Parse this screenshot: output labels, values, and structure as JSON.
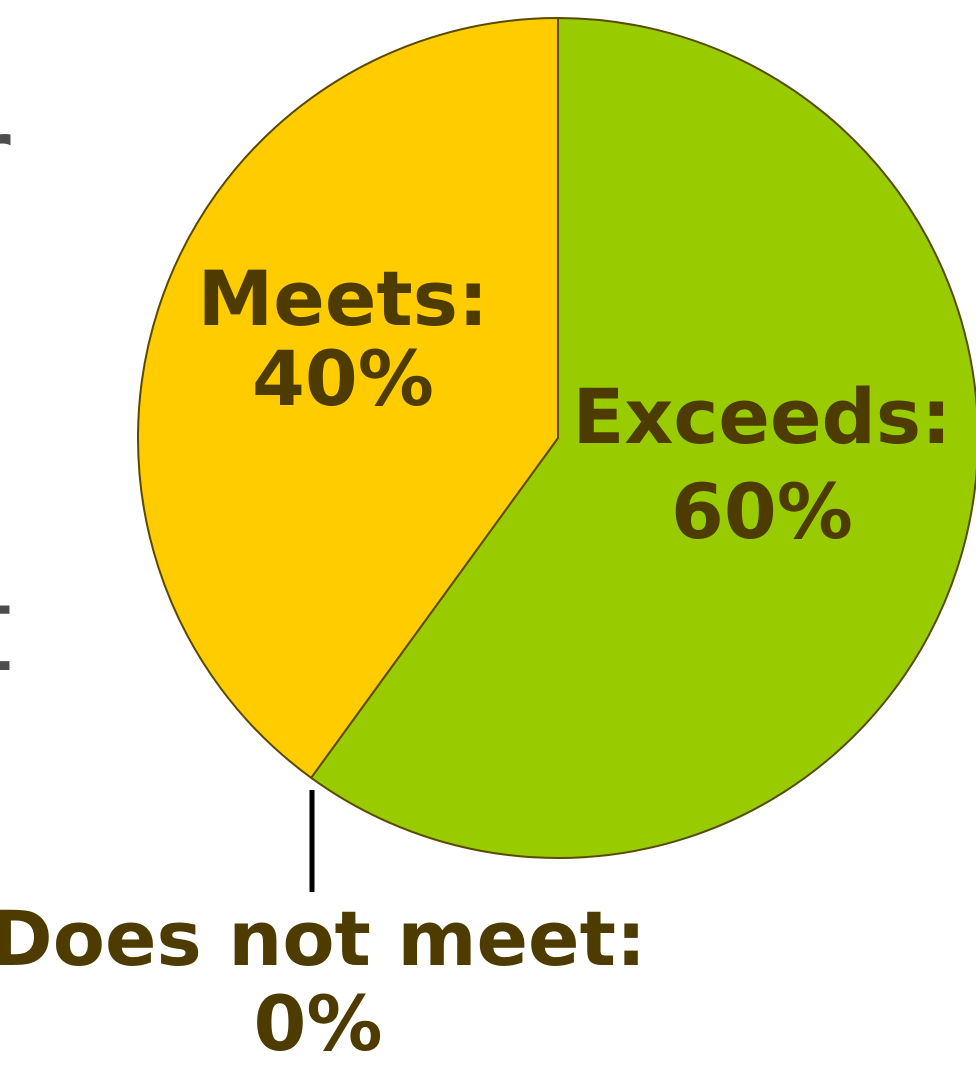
{
  "chart_data": {
    "type": "pie",
    "categories": [
      "Exceeds",
      "Meets",
      "Does not meet"
    ],
    "values": [
      60,
      40,
      0
    ],
    "labels": [
      {
        "name": "Exceeds:",
        "value": "60%"
      },
      {
        "name": "Meets:",
        "value": "40%"
      },
      {
        "name": "Does not meet:",
        "value": "0%"
      }
    ],
    "title": "",
    "colors": {
      "exceeds": "#99cc00",
      "meets": "#ffcc00",
      "outline": "#5a4a00",
      "label_text": "#4d3b00"
    },
    "legend": "none",
    "grid": false
  },
  "background_fragments": {
    "upper": "r",
    "lower": "t"
  }
}
